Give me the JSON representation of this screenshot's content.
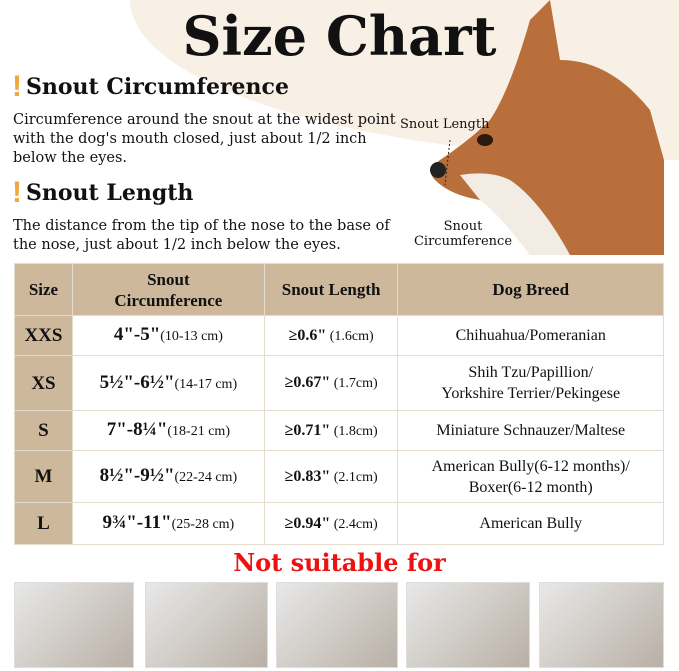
{
  "title": "Size Chart",
  "sections": [
    {
      "heading": "Snout Circumference",
      "text": "Circumference around the snout at the widest point with the dog's mouth closed, just about 1/2 inch below the eyes."
    },
    {
      "heading": "Snout Length",
      "text": "The distance from the tip of the nose to the base of the nose, just about 1/2 inch below the eyes."
    }
  ],
  "diagram": {
    "length_label": "Snout Length",
    "circumference_label": "Snout Circumference"
  },
  "table": {
    "headers": [
      "Size",
      "Snout Circumference",
      "Snout Length",
      "Dog Breed"
    ],
    "rows": [
      {
        "size": "XXS",
        "circ": "4\"-5\"",
        "circ_cm": "(10-13 cm)",
        "len": "≥0.6\"",
        "len_cm": " (1.6cm)",
        "breed": "Chihuahua/Pomeranian",
        "breed2": ""
      },
      {
        "size": "XS",
        "circ": "5½\"-6½\"",
        "circ_cm": "(14-17 cm)",
        "len": "≥0.67\"",
        "len_cm": " (1.7cm)",
        "breed": "Shih Tzu/Papillion/",
        "breed2": "Yorkshire Terrier/Pekingese"
      },
      {
        "size": "S",
        "circ": "7\"-8¼\"",
        "circ_cm": "(18-21 cm)",
        "len": "≥0.71\"",
        "len_cm": " (1.8cm)",
        "breed": "Miniature Schnauzer/Maltese",
        "breed2": ""
      },
      {
        "size": "M",
        "circ": "8½\"-9½\"",
        "circ_cm": "(22-24 cm)",
        "len": "≥0.83\"",
        "len_cm": " (2.1cm)",
        "breed": "American Bully(6-12 months)/",
        "breed2": "Boxer(6-12 month)"
      },
      {
        "size": "L",
        "circ": "9¾\"-11\"",
        "circ_cm": "(25-28 cm)",
        "len": "≥0.94\"",
        "len_cm": " (2.4cm)",
        "breed": "American Bully",
        "breed2": ""
      }
    ]
  },
  "not_suitable": "Not suitable for",
  "colors": {
    "accent": "#f3a63b",
    "header": "#ceb89c",
    "warning": "#ee1111",
    "background_curve": "#f9f0e5"
  }
}
